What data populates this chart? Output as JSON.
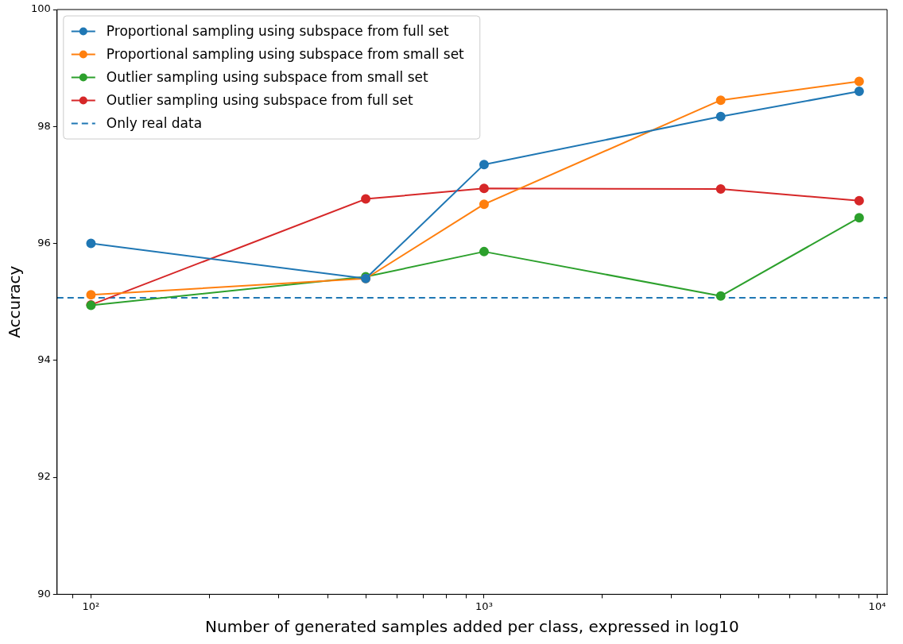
{
  "chart_data": {
    "type": "line",
    "xlabel": "Number of generated samples added per class, expressed in log10",
    "ylabel": "Accuracy",
    "x": [
      100,
      500,
      1000,
      4000,
      9000
    ],
    "series": [
      {
        "name": "Proportional sampling using subspace from full set",
        "color": "#1f77b4",
        "values": [
          96.0,
          95.4,
          97.35,
          98.17,
          98.6
        ]
      },
      {
        "name": "Proportional sampling using subspace from small set",
        "color": "#ff7f0e",
        "values": [
          95.12,
          95.4,
          96.67,
          98.45,
          98.77
        ]
      },
      {
        "name": "Outlier sampling using subspace from small set",
        "color": "#2ca02c",
        "values": [
          94.94,
          95.43,
          95.86,
          95.1,
          96.44
        ]
      },
      {
        "name": "Outlier sampling using subspace from full set",
        "color": "#d62728",
        "values": [
          94.95,
          96.76,
          96.94,
          96.93,
          96.73
        ]
      }
    ],
    "ref_lines": [
      {
        "axis": "y",
        "value": 95.07,
        "label": "Only real data",
        "color": "#1f77b4",
        "line_style": "dashed"
      }
    ],
    "log": "x",
    "xlim": [
      82,
      10600
    ],
    "xticks": [
      {
        "value": 90,
        "label": null
      },
      {
        "value": 100,
        "label": "10²"
      },
      {
        "value": 200,
        "label": null
      },
      {
        "value": 300,
        "label": null
      },
      {
        "value": 400,
        "label": null
      },
      {
        "value": 500,
        "label": null
      },
      {
        "value": 600,
        "label": null
      },
      {
        "value": 700,
        "label": null
      },
      {
        "value": 800,
        "label": null
      },
      {
        "value": 900,
        "label": null
      },
      {
        "value": 1000,
        "label": "10³"
      },
      {
        "value": 2000,
        "label": null
      },
      {
        "value": 3000,
        "label": null
      },
      {
        "value": 4000,
        "label": null
      },
      {
        "value": 5000,
        "label": null
      },
      {
        "value": 6000,
        "label": null
      },
      {
        "value": 7000,
        "label": null
      },
      {
        "value": 8000,
        "label": null
      },
      {
        "value": 9000,
        "label": null
      },
      {
        "value": 10000,
        "label": "10⁴"
      }
    ],
    "ylim": [
      90,
      100
    ],
    "yticks": [
      90,
      92,
      94,
      96,
      98,
      100
    ],
    "grid": false,
    "legend": "top left",
    "marker": "circle",
    "line_style": "solid"
  }
}
